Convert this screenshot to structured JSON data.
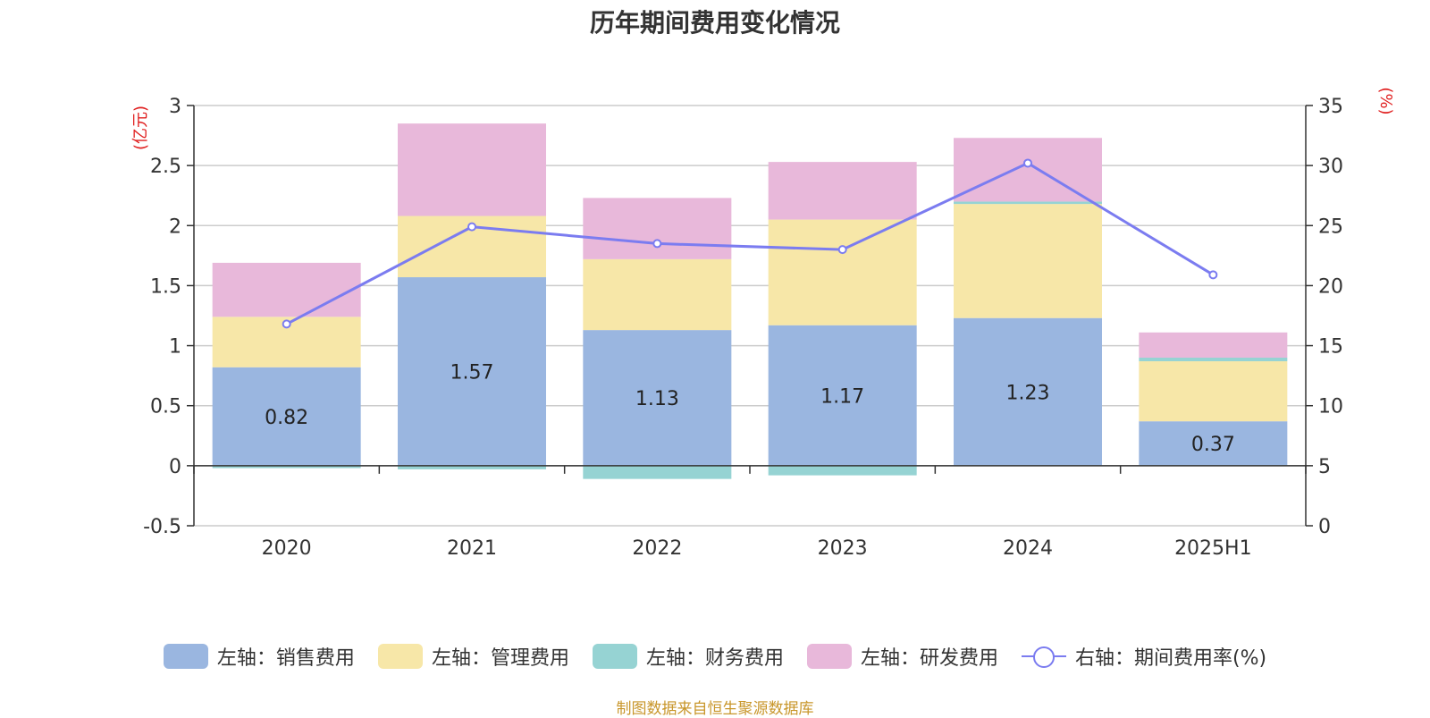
{
  "chart_data": {
    "type": "bar",
    "title": "历年期间费用变化情况",
    "categories": [
      "2020",
      "2021",
      "2022",
      "2023",
      "2024",
      "2025H1"
    ],
    "left_axis": {
      "unit": "(亿元)",
      "ylim": [
        -0.5,
        3
      ],
      "ticks": [
        "-0.5",
        "0",
        "0.5",
        "1",
        "1.5",
        "2",
        "2.5",
        "3"
      ]
    },
    "right_axis": {
      "unit": "(%)",
      "ylim": [
        0,
        35
      ],
      "ticks": [
        "0",
        "5",
        "10",
        "15",
        "20",
        "25",
        "30",
        "35"
      ]
    },
    "stacked": true,
    "grid": true,
    "legend_position": "bottom",
    "series": [
      {
        "name": "左轴：销售费用",
        "kind": "bar",
        "color": "#9ab6e0",
        "values": [
          0.82,
          1.57,
          1.13,
          1.17,
          1.23,
          0.37
        ],
        "labels": [
          "0.82",
          "1.57",
          "1.13",
          "1.17",
          "1.23",
          "0.37"
        ]
      },
      {
        "name": "左轴：管理费用",
        "kind": "bar",
        "color": "#f7e7a8",
        "values": [
          0.42,
          0.51,
          0.59,
          0.88,
          0.95,
          0.5
        ]
      },
      {
        "name": "左轴：财务费用",
        "kind": "bar",
        "color": "#96d3d3",
        "values": [
          -0.02,
          -0.03,
          -0.11,
          -0.08,
          0.02,
          0.03
        ]
      },
      {
        "name": "左轴：研发费用",
        "kind": "bar",
        "color": "#e8b8da",
        "values": [
          0.45,
          0.77,
          0.51,
          0.48,
          0.53,
          0.21
        ]
      },
      {
        "name": "右轴：期间费用率(%)",
        "kind": "line",
        "color": "#7b7cf0",
        "values": [
          16.8,
          24.9,
          23.5,
          23.0,
          30.2,
          20.9
        ]
      }
    ]
  },
  "source": "制图数据来自恒生聚源数据库"
}
